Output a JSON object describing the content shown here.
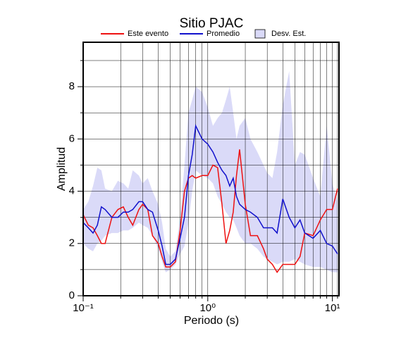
{
  "chart_data": {
    "type": "line",
    "title": "Sitio PJAC",
    "xlabel": "Periodo (s)",
    "ylabel": "Amplitud",
    "xscale": "log",
    "grid": true,
    "xlim": [
      0.1,
      11.3
    ],
    "ylim": [
      0,
      9.7
    ],
    "xticks": [
      {
        "value": 0.1,
        "label": "10⁻¹"
      },
      {
        "value": 1,
        "label": "10⁰"
      },
      {
        "value": 10,
        "label": "10¹"
      }
    ],
    "xminor": [
      0.2,
      0.3,
      0.4,
      0.5,
      0.6,
      0.7,
      0.8,
      0.9,
      2,
      3,
      4,
      5,
      6,
      7,
      8,
      9,
      11
    ],
    "yticks": [
      0,
      2,
      4,
      6,
      8
    ],
    "yminor": [
      1,
      3,
      5,
      7,
      9
    ],
    "x": [
      0.1,
      0.11,
      0.12,
      0.13,
      0.14,
      0.15,
      0.17,
      0.19,
      0.21,
      0.23,
      0.25,
      0.28,
      0.3,
      0.33,
      0.36,
      0.4,
      0.43,
      0.46,
      0.5,
      0.55,
      0.6,
      0.65,
      0.7,
      0.75,
      0.8,
      0.9,
      1.0,
      1.1,
      1.2,
      1.3,
      1.4,
      1.5,
      1.6,
      1.7,
      1.8,
      2.0,
      2.2,
      2.5,
      2.8,
      3.0,
      3.3,
      3.6,
      4.0,
      4.5,
      5,
      5.5,
      6,
      7,
      8,
      9,
      10,
      11
    ],
    "series": [
      {
        "name": "Este evento",
        "color": "#ee1111",
        "values": [
          3.1,
          2.7,
          2.6,
          2.3,
          2.0,
          2.0,
          3.0,
          3.3,
          3.4,
          3.0,
          2.7,
          3.3,
          3.5,
          3.3,
          2.3,
          2.0,
          1.5,
          1.1,
          1.1,
          1.3,
          2.5,
          4.0,
          4.5,
          4.6,
          4.5,
          4.6,
          4.6,
          5.0,
          4.9,
          3.5,
          2.0,
          2.5,
          3.2,
          4.6,
          5.6,
          3.5,
          2.3,
          2.3,
          1.8,
          1.4,
          1.2,
          0.9,
          1.2,
          1.2,
          1.2,
          1.5,
          2.4,
          2.3,
          2.9,
          3.3,
          3.3,
          4.1
        ]
      },
      {
        "name": "Promedio",
        "color": "#1111cc",
        "values": [
          2.8,
          2.6,
          2.4,
          2.7,
          3.4,
          3.3,
          3.0,
          3.0,
          3.2,
          3.2,
          3.3,
          3.6,
          3.6,
          3.3,
          3.2,
          2.5,
          1.9,
          1.2,
          1.2,
          1.4,
          2.2,
          3.0,
          4.6,
          5.4,
          6.5,
          6.0,
          5.8,
          5.5,
          5.1,
          4.8,
          4.6,
          4.2,
          4.5,
          3.8,
          3.5,
          3.3,
          3.2,
          3.0,
          2.6,
          2.6,
          2.6,
          2.4,
          3.7,
          3.0,
          2.6,
          2.9,
          2.4,
          2.2,
          2.5,
          2.0,
          1.9,
          1.6
        ]
      }
    ],
    "band": {
      "name": "Desv. Est.",
      "color": "#dadaf8",
      "upper": [
        3.3,
        3.6,
        4.2,
        4.9,
        4.8,
        4.1,
        4.0,
        4.4,
        4.3,
        4.1,
        4.8,
        4.6,
        4.3,
        4.5,
        4.0,
        3.5,
        2.8,
        1.8,
        1.5,
        1.7,
        3.0,
        5.0,
        7.0,
        7.5,
        8.0,
        7.8,
        7.2,
        6.5,
        6.8,
        7.0,
        7.5,
        8.0,
        7.0,
        6.0,
        6.5,
        6.8,
        6.0,
        5.5,
        5.0,
        4.7,
        4.5,
        5.5,
        7.3,
        8.6,
        5.0,
        5.5,
        5.4,
        4.5,
        3.8,
        6.5,
        4.3,
        3.6
      ],
      "lower": [
        2.0,
        1.8,
        1.7,
        2.0,
        2.1,
        2.3,
        2.4,
        2.4,
        2.5,
        2.5,
        2.6,
        2.8,
        2.7,
        2.6,
        2.3,
        1.8,
        1.3,
        0.9,
        1.0,
        1.2,
        1.6,
        1.9,
        2.8,
        4.0,
        4.8,
        4.6,
        4.5,
        4.3,
        3.8,
        3.5,
        3.2,
        3.0,
        2.9,
        2.6,
        2.3,
        2.0,
        2.0,
        1.8,
        1.5,
        1.4,
        1.3,
        1.2,
        1.3,
        1.3,
        1.4,
        1.3,
        1.2,
        1.1,
        1.1,
        1.0,
        0.9,
        0.9
      ]
    }
  }
}
